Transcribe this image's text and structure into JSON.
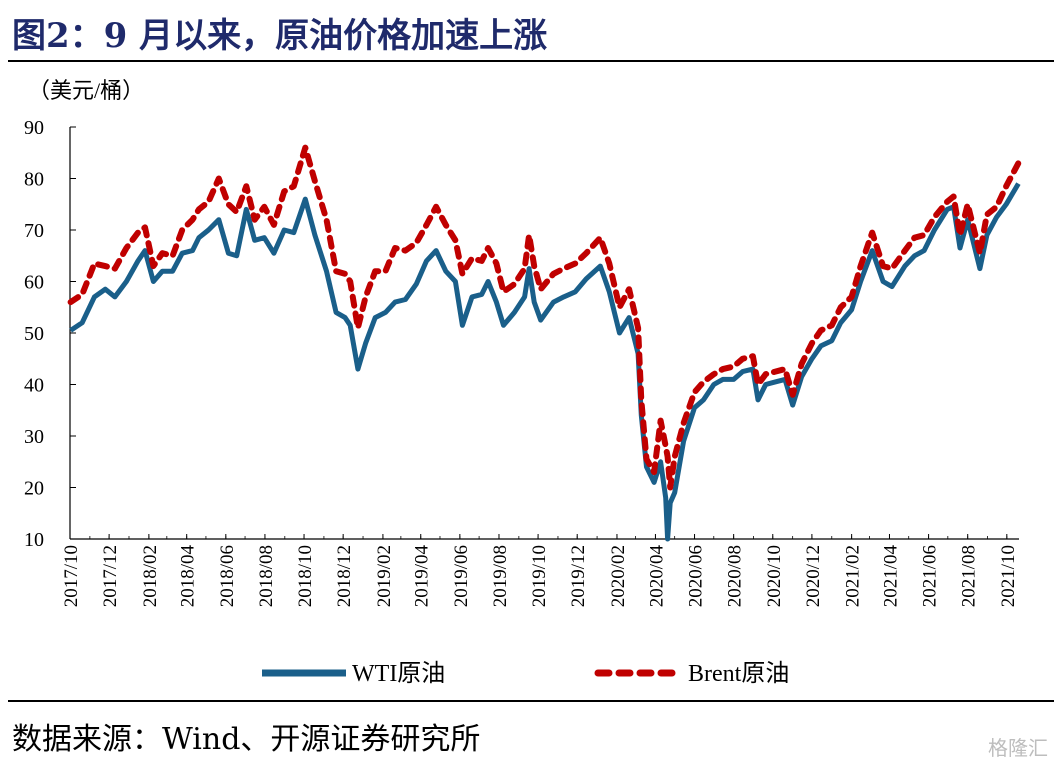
{
  "title": "图2：9 月以来，原油价格加速上涨",
  "source": "数据来源：Wind、开源证券研究所",
  "watermark": "格隆汇",
  "colors": {
    "wti": "#1a5f8a",
    "brent": "#c00000",
    "title": "#1f2a6b"
  },
  "chart_data": {
    "type": "line",
    "title": "",
    "xlabel": "",
    "ylabel": "（美元/桶）",
    "ylim": [
      10,
      90
    ],
    "yticks": [
      10,
      20,
      30,
      40,
      50,
      60,
      70,
      80,
      90
    ],
    "grid": false,
    "legend": "bottom",
    "xrange": [
      "2017-10-01",
      "2021-10-20"
    ],
    "xtick_labels": [
      "2017/10",
      "2017/12",
      "2018/02",
      "2018/04",
      "2018/06",
      "2018/08",
      "2018/10",
      "2018/12",
      "2019/02",
      "2019/04",
      "2019/06",
      "2019/08",
      "2019/10",
      "2019/12",
      "2020/02",
      "2020/04",
      "2020/06",
      "2020/08",
      "2020/10",
      "2020/12",
      "2021/02",
      "2021/04",
      "2021/06",
      "2021/08",
      "2021/10"
    ],
    "series": [
      {
        "name": "WTI原油",
        "style": "solid",
        "points": [
          [
            "2017-10-02",
            50.5
          ],
          [
            "2017-10-20",
            52.0
          ],
          [
            "2017-11-08",
            57.0
          ],
          [
            "2017-11-25",
            58.5
          ],
          [
            "2017-12-10",
            57.0
          ],
          [
            "2017-12-28",
            60.0
          ],
          [
            "2018-01-15",
            64.0
          ],
          [
            "2018-01-26",
            66.0
          ],
          [
            "2018-02-08",
            60.0
          ],
          [
            "2018-02-22",
            62.0
          ],
          [
            "2018-03-10",
            62.0
          ],
          [
            "2018-03-25",
            65.5
          ],
          [
            "2018-04-10",
            66.0
          ],
          [
            "2018-04-20",
            68.5
          ],
          [
            "2018-05-05",
            70.0
          ],
          [
            "2018-05-21",
            72.0
          ],
          [
            "2018-06-05",
            65.5
          ],
          [
            "2018-06-18",
            65.0
          ],
          [
            "2018-07-03",
            74.0
          ],
          [
            "2018-07-16",
            68.0
          ],
          [
            "2018-07-31",
            68.5
          ],
          [
            "2018-08-15",
            65.5
          ],
          [
            "2018-08-31",
            70.0
          ],
          [
            "2018-09-15",
            69.5
          ],
          [
            "2018-10-03",
            76.0
          ],
          [
            "2018-10-18",
            69.0
          ],
          [
            "2018-11-05",
            62.0
          ],
          [
            "2018-11-20",
            54.0
          ],
          [
            "2018-12-04",
            53.0
          ],
          [
            "2018-12-12",
            51.5
          ],
          [
            "2018-12-24",
            43.0
          ],
          [
            "2019-01-05",
            48.0
          ],
          [
            "2019-01-20",
            53.0
          ],
          [
            "2019-02-05",
            54.0
          ],
          [
            "2019-02-20",
            56.0
          ],
          [
            "2019-03-08",
            56.5
          ],
          [
            "2019-03-25",
            59.5
          ],
          [
            "2019-04-10",
            64.0
          ],
          [
            "2019-04-25",
            66.0
          ],
          [
            "2019-05-10",
            62.0
          ],
          [
            "2019-05-25",
            60.0
          ],
          [
            "2019-06-05",
            51.5
          ],
          [
            "2019-06-20",
            57.0
          ],
          [
            "2019-07-05",
            57.5
          ],
          [
            "2019-07-15",
            60.0
          ],
          [
            "2019-07-28",
            56.0
          ],
          [
            "2019-08-08",
            51.5
          ],
          [
            "2019-08-25",
            54.0
          ],
          [
            "2019-09-10",
            57.0
          ],
          [
            "2019-09-17",
            62.5
          ],
          [
            "2019-09-25",
            56.0
          ],
          [
            "2019-10-05",
            52.5
          ],
          [
            "2019-10-25",
            56.0
          ],
          [
            "2019-11-10",
            57.0
          ],
          [
            "2019-11-28",
            58.0
          ],
          [
            "2019-12-15",
            60.5
          ],
          [
            "2020-01-06",
            63.0
          ],
          [
            "2020-01-20",
            58.0
          ],
          [
            "2020-02-05",
            50.0
          ],
          [
            "2020-02-20",
            53.0
          ],
          [
            "2020-03-05",
            46.0
          ],
          [
            "2020-03-10",
            34.0
          ],
          [
            "2020-03-18",
            24.0
          ],
          [
            "2020-03-30",
            21.0
          ],
          [
            "2020-04-09",
            25.0
          ],
          [
            "2020-04-17",
            18.0
          ],
          [
            "2020-04-20",
            10.0
          ],
          [
            "2020-04-24",
            17.0
          ],
          [
            "2020-05-01",
            19.0
          ],
          [
            "2020-05-15",
            29.0
          ],
          [
            "2020-06-01",
            35.5
          ],
          [
            "2020-06-15",
            37.0
          ],
          [
            "2020-07-01",
            40.0
          ],
          [
            "2020-07-15",
            41.0
          ],
          [
            "2020-08-01",
            41.0
          ],
          [
            "2020-08-15",
            42.5
          ],
          [
            "2020-08-31",
            43.0
          ],
          [
            "2020-09-08",
            37.0
          ],
          [
            "2020-09-20",
            40.0
          ],
          [
            "2020-10-05",
            40.5
          ],
          [
            "2020-10-20",
            41.0
          ],
          [
            "2020-11-01",
            36.0
          ],
          [
            "2020-11-15",
            41.5
          ],
          [
            "2020-12-01",
            45.0
          ],
          [
            "2020-12-15",
            47.5
          ],
          [
            "2021-01-01",
            48.5
          ],
          [
            "2021-01-15",
            52.0
          ],
          [
            "2021-02-01",
            54.5
          ],
          [
            "2021-02-15",
            60.0
          ],
          [
            "2021-03-05",
            66.0
          ],
          [
            "2021-03-22",
            60.0
          ],
          [
            "2021-04-05",
            59.0
          ],
          [
            "2021-04-25",
            63.0
          ],
          [
            "2021-05-10",
            65.0
          ],
          [
            "2021-05-25",
            66.0
          ],
          [
            "2021-06-10",
            70.0
          ],
          [
            "2021-06-30",
            74.0
          ],
          [
            "2021-07-10",
            74.5
          ],
          [
            "2021-07-20",
            66.5
          ],
          [
            "2021-08-01",
            72.0
          ],
          [
            "2021-08-20",
            62.5
          ],
          [
            "2021-08-31",
            69.0
          ],
          [
            "2021-09-15",
            72.5
          ],
          [
            "2021-09-30",
            75.0
          ],
          [
            "2021-10-19",
            79.0
          ]
        ]
      },
      {
        "name": "Brent原油",
        "style": "dashed",
        "points": [
          [
            "2017-10-02",
            56.0
          ],
          [
            "2017-10-20",
            57.5
          ],
          [
            "2017-11-08",
            63.5
          ],
          [
            "2017-11-25",
            63.0
          ],
          [
            "2017-12-10",
            62.5
          ],
          [
            "2017-12-28",
            66.5
          ],
          [
            "2018-01-15",
            69.5
          ],
          [
            "2018-01-26",
            70.5
          ],
          [
            "2018-02-08",
            63.0
          ],
          [
            "2018-02-22",
            65.5
          ],
          [
            "2018-03-10",
            65.0
          ],
          [
            "2018-03-25",
            70.0
          ],
          [
            "2018-04-10",
            72.0
          ],
          [
            "2018-04-20",
            74.0
          ],
          [
            "2018-05-05",
            75.5
          ],
          [
            "2018-05-21",
            80.0
          ],
          [
            "2018-06-05",
            75.0
          ],
          [
            "2018-06-18",
            73.5
          ],
          [
            "2018-07-03",
            78.5
          ],
          [
            "2018-07-16",
            72.0
          ],
          [
            "2018-07-31",
            74.5
          ],
          [
            "2018-08-15",
            71.0
          ],
          [
            "2018-08-31",
            77.5
          ],
          [
            "2018-09-15",
            78.5
          ],
          [
            "2018-10-03",
            86.0
          ],
          [
            "2018-10-18",
            79.5
          ],
          [
            "2018-11-05",
            72.0
          ],
          [
            "2018-11-20",
            62.0
          ],
          [
            "2018-12-04",
            61.5
          ],
          [
            "2018-12-12",
            60.0
          ],
          [
            "2018-12-24",
            51.0
          ],
          [
            "2019-01-05",
            57.0
          ],
          [
            "2019-01-20",
            62.0
          ],
          [
            "2019-02-05",
            62.0
          ],
          [
            "2019-02-20",
            66.5
          ],
          [
            "2019-03-08",
            66.0
          ],
          [
            "2019-03-25",
            67.5
          ],
          [
            "2019-04-10",
            71.0
          ],
          [
            "2019-04-25",
            74.5
          ],
          [
            "2019-05-10",
            71.0
          ],
          [
            "2019-05-25",
            68.0
          ],
          [
            "2019-06-05",
            61.5
          ],
          [
            "2019-06-20",
            64.5
          ],
          [
            "2019-07-05",
            64.0
          ],
          [
            "2019-07-15",
            66.5
          ],
          [
            "2019-07-28",
            63.5
          ],
          [
            "2019-08-08",
            58.0
          ],
          [
            "2019-08-25",
            59.5
          ],
          [
            "2019-09-10",
            62.5
          ],
          [
            "2019-09-17",
            69.0
          ],
          [
            "2019-09-25",
            63.0
          ],
          [
            "2019-10-05",
            58.5
          ],
          [
            "2019-10-25",
            61.5
          ],
          [
            "2019-11-10",
            62.5
          ],
          [
            "2019-11-28",
            63.5
          ],
          [
            "2019-12-15",
            65.5
          ],
          [
            "2020-01-06",
            68.5
          ],
          [
            "2020-01-20",
            63.5
          ],
          [
            "2020-02-05",
            55.0
          ],
          [
            "2020-02-20",
            58.5
          ],
          [
            "2020-03-05",
            51.0
          ],
          [
            "2020-03-10",
            37.0
          ],
          [
            "2020-03-18",
            25.5
          ],
          [
            "2020-03-30",
            23.0
          ],
          [
            "2020-04-09",
            33.0
          ],
          [
            "2020-04-17",
            28.0
          ],
          [
            "2020-04-20",
            26.0
          ],
          [
            "2020-04-24",
            20.0
          ],
          [
            "2020-05-01",
            26.0
          ],
          [
            "2020-05-15",
            32.5
          ],
          [
            "2020-06-01",
            38.5
          ],
          [
            "2020-06-15",
            40.5
          ],
          [
            "2020-07-01",
            42.0
          ],
          [
            "2020-07-15",
            43.0
          ],
          [
            "2020-08-01",
            43.5
          ],
          [
            "2020-08-15",
            45.0
          ],
          [
            "2020-08-31",
            45.5
          ],
          [
            "2020-09-08",
            40.0
          ],
          [
            "2020-09-20",
            42.0
          ],
          [
            "2020-10-05",
            42.5
          ],
          [
            "2020-10-20",
            43.0
          ],
          [
            "2020-11-01",
            38.0
          ],
          [
            "2020-11-15",
            44.0
          ],
          [
            "2020-12-01",
            48.0
          ],
          [
            "2020-12-15",
            50.5
          ],
          [
            "2021-01-01",
            51.5
          ],
          [
            "2021-01-15",
            55.0
          ],
          [
            "2021-02-01",
            57.0
          ],
          [
            "2021-02-15",
            63.0
          ],
          [
            "2021-03-05",
            69.5
          ],
          [
            "2021-03-22",
            63.0
          ],
          [
            "2021-04-05",
            62.5
          ],
          [
            "2021-04-25",
            66.0
          ],
          [
            "2021-05-10",
            68.5
          ],
          [
            "2021-05-25",
            69.0
          ],
          [
            "2021-06-10",
            72.5
          ],
          [
            "2021-06-30",
            75.5
          ],
          [
            "2021-07-10",
            76.5
          ],
          [
            "2021-07-20",
            69.0
          ],
          [
            "2021-08-01",
            75.0
          ],
          [
            "2021-08-20",
            65.5
          ],
          [
            "2021-08-31",
            73.0
          ],
          [
            "2021-09-15",
            74.5
          ],
          [
            "2021-09-30",
            78.5
          ],
          [
            "2021-10-19",
            83.0
          ]
        ]
      }
    ]
  }
}
